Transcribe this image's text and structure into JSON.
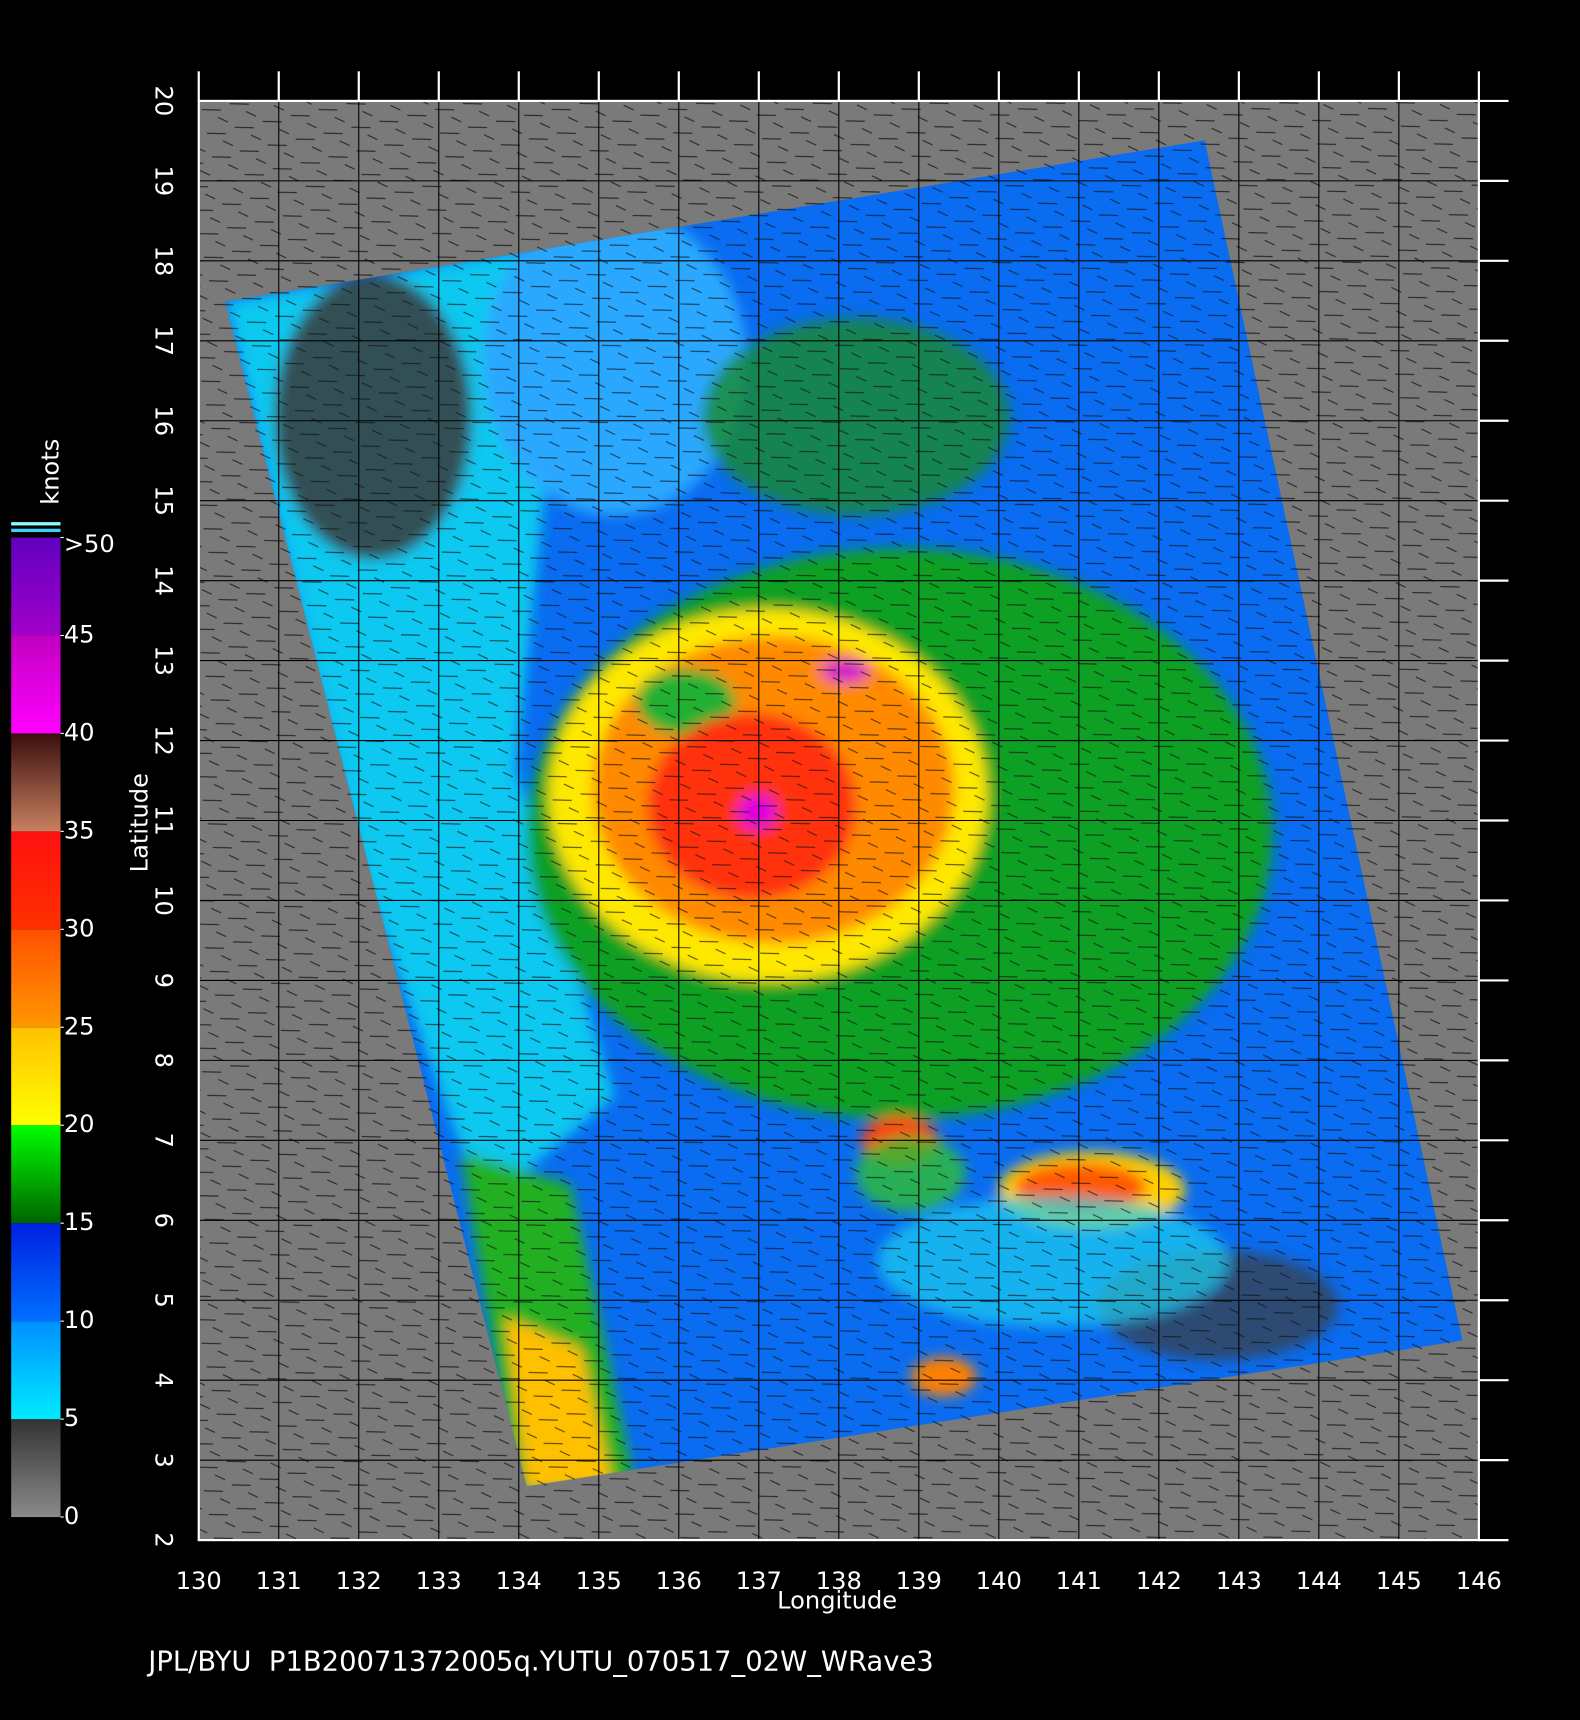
{
  "chart_data": {
    "type": "map",
    "x_label": "Longitude",
    "y_label": "Latitude",
    "xlim": [
      130,
      146
    ],
    "xticks": [
      130,
      131,
      132,
      133,
      134,
      135,
      136,
      137,
      138,
      139,
      140,
      141,
      142,
      143,
      144,
      145,
      146
    ],
    "ylim": [
      2,
      20
    ],
    "yticks": [
      2,
      3,
      4,
      5,
      6,
      7,
      8,
      9,
      10,
      11,
      12,
      13,
      14,
      15,
      16,
      17,
      18,
      19,
      20
    ],
    "grid": true,
    "colorbar": {
      "title": "knots",
      "lim": [
        0,
        50
      ],
      "ticks": [
        0,
        5,
        10,
        15,
        20,
        25,
        30,
        35,
        40,
        45,
        {
          "value": 50,
          "label": ">50"
        }
      ],
      "colors": [
        [
          "#8a8a8a",
          "#333333"
        ],
        [
          "#00eaff",
          "#0090ff"
        ],
        [
          "#0070ff",
          "#0020e0"
        ],
        [
          "#006400",
          "#00ff00"
        ],
        [
          "#ffff00",
          "#ffc000"
        ],
        [
          "#ff9800",
          "#ff5000"
        ],
        [
          "#ff3000",
          "#ff1010"
        ],
        [
          "#c88060",
          "#3a0e0e"
        ],
        [
          "#ff00ff",
          "#c000c0"
        ],
        [
          "#a000c8",
          "#6000c0"
        ]
      ]
    },
    "footer": "JPL/BYU  P1B20071372005q.YUTU_070517_02W_WRave3"
  }
}
